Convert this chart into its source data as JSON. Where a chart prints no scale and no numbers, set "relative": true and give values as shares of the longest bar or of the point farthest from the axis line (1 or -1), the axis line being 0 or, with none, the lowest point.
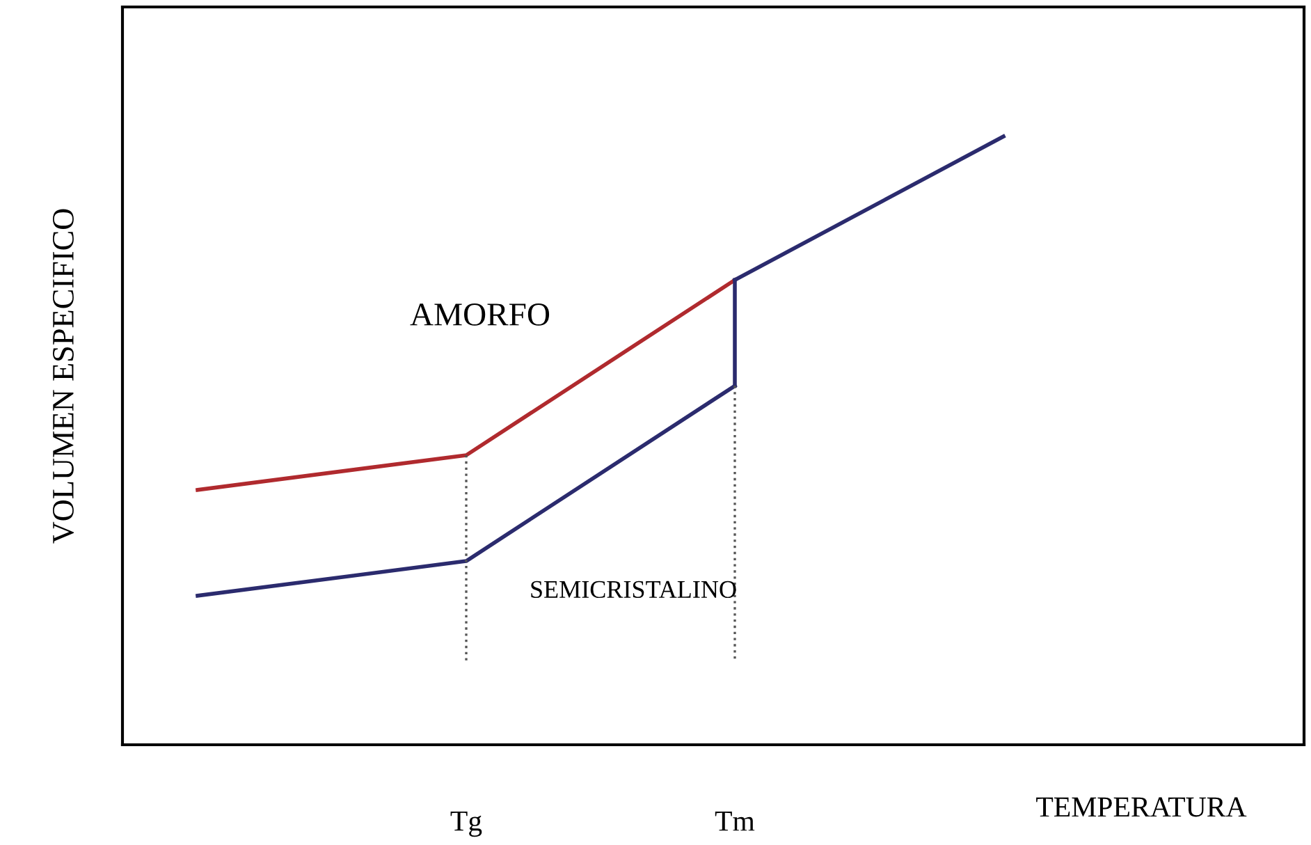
{
  "chart_data": {
    "type": "line",
    "relative": true,
    "xlabel": "TEMPERATURA",
    "ylabel": "VOLUMEN ESPECIFICO",
    "categories": [
      null,
      "Tg",
      "Tm",
      null
    ],
    "series": [
      {
        "color": "#b02a2e",
        "values": [
          0.419,
          0.476,
          0.764,
          null
        ]
      },
      {
        "color": "#2b2b6e",
        "values": [
          0.245,
          0.302,
          0.59,
          null
        ]
      },
      {
        "color": "#2b2b6e",
        "x": [
          "Tm",
          "Tm"
        ],
        "values": [
          0.59,
          0.764
        ]
      },
      {
        "color": "#2b2b6e",
        "values": [
          null,
          null,
          0.764,
          1.0
        ]
      },
      {
        "color": "#555555",
        "line_style": "dotted",
        "x": [
          "Tg",
          "Tg"
        ],
        "values": [
          0.476,
          0.137
        ]
      },
      {
        "color": "#555555",
        "line_style": "dotted",
        "x": [
          "Tm",
          "Tm"
        ],
        "values": [
          0.59,
          0.137
        ]
      }
    ],
    "annotations": [
      "AMORFO",
      "SEMICRISTALINO"
    ],
    "grid": false,
    "marker": "none",
    "line_style": "solid"
  }
}
